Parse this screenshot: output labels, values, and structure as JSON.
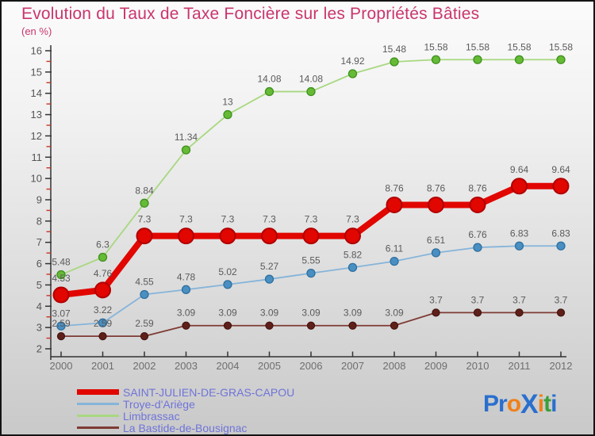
{
  "title": "Evolution du Taux de Taxe Foncière sur les Propriétés Bâties",
  "subtitle": "(en %)",
  "colors": {
    "title": "#c9356d",
    "subtitle": "#c9356d",
    "axis_line": "#333333",
    "y_tick_label": "#555555",
    "x_tick_label": "#6e6e6e",
    "minor_tick": "#cc3322",
    "data_label": "#5a5a5a",
    "legend_text": "#6f74d8",
    "background_top": "#fbfbfb",
    "background_bottom": "#c9c9c9"
  },
  "chart_data": {
    "type": "line",
    "title": "Evolution du Taux de Taxe Foncière sur les Propriétés Bâties",
    "subtitle": "(en %)",
    "x": [
      2000,
      2001,
      2002,
      2003,
      2004,
      2005,
      2006,
      2007,
      2008,
      2009,
      2010,
      2011,
      2012
    ],
    "ylim": [
      2,
      16
    ],
    "y_major_step": 1,
    "y_minor_step": 0.5,
    "grid": false,
    "legend_position": "bottom-left",
    "point_labels_shown": true,
    "series": [
      {
        "name": "SAINT-JULIEN-DE-GRAS-CAPOU",
        "values": [
          4.53,
          4.76,
          7.3,
          7.3,
          7.3,
          7.3,
          7.3,
          7.3,
          8.76,
          8.76,
          8.76,
          9.64,
          9.64
        ],
        "line_color": "#e10600",
        "marker_color": "#e10600",
        "marker_stroke": "#b00000",
        "line_width": 8,
        "marker_radius": 9.5,
        "label_offset": 17
      },
      {
        "name": "Troye-d'Ariège",
        "values": [
          3.07,
          3.22,
          4.55,
          4.78,
          5.02,
          5.27,
          5.55,
          5.82,
          6.11,
          6.51,
          6.76,
          6.83,
          6.83
        ],
        "line_color": "#85b4da",
        "marker_color": "#4a8fc2",
        "marker_stroke": "#2f6f9f",
        "line_width": 1.8,
        "marker_radius": 5,
        "label_offset": 12
      },
      {
        "name": "Limbrassac",
        "values": [
          5.48,
          6.3,
          8.84,
          11.34,
          13,
          14.08,
          14.08,
          14.92,
          15.48,
          15.58,
          15.58,
          15.58,
          15.58
        ],
        "line_color": "#a8d880",
        "marker_color": "#65bb35",
        "marker_stroke": "#3f8f1f",
        "line_width": 1.8,
        "marker_radius": 5,
        "label_offset": 12
      },
      {
        "name": "La Bastide-de-Bousignac",
        "values": [
          2.59,
          2.59,
          2.59,
          3.09,
          3.09,
          3.09,
          3.09,
          3.09,
          3.09,
          3.7,
          3.7,
          3.7,
          3.7
        ],
        "line_color": "#7e3b34",
        "marker_color": "#5f201a",
        "marker_stroke": "#471511",
        "line_width": 1.8,
        "marker_radius": 4.5,
        "label_offset": 12
      }
    ]
  },
  "logo": {
    "name": "Proxiti",
    "letters": [
      {
        "ch": "P",
        "color": "#2a6fce"
      },
      {
        "ch": "r",
        "color": "#2a6fce"
      },
      {
        "ch": "o",
        "color": "#f08019"
      },
      {
        "ch": "X",
        "color": "#2a6fce",
        "big": true
      },
      {
        "ch": "i",
        "color": "#f08019"
      },
      {
        "ch": "t",
        "color": "#3aa03a"
      },
      {
        "ch": "i",
        "color": "#2a6fce"
      }
    ]
  }
}
